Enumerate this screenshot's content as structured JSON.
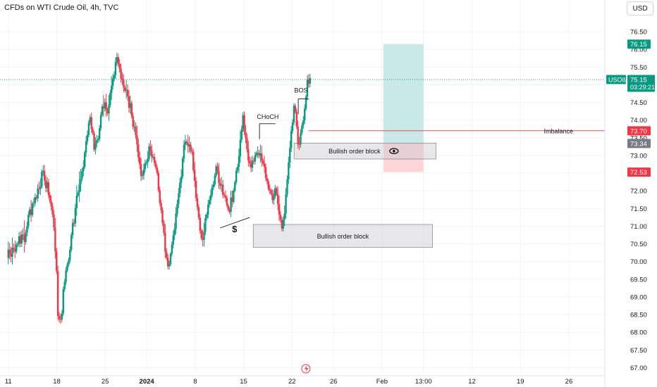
{
  "header": {
    "title": "CFDs on WTI Crude Oil, 4h, TVC",
    "currency": "USD"
  },
  "colors": {
    "up": "#089981",
    "down": "#f23645",
    "grid": "#f0f3fa",
    "text": "#131722",
    "price_tag": "#089981",
    "imbalance": "#f23645",
    "gray_tag": "#787b86",
    "target_zone": "#b2dfdb",
    "stop_zone": "#fccbcd"
  },
  "chart_data": {
    "type": "candlestick",
    "title": "CFDs on WTI Crude Oil, 4h, TVC",
    "ylim": [
      66.85,
      77.0
    ],
    "y_ticks": [
      67.0,
      67.5,
      68.0,
      68.5,
      69.0,
      69.5,
      70.0,
      70.5,
      71.0,
      71.5,
      72.0,
      72.5,
      73.0,
      73.5,
      74.0,
      74.5,
      75.0,
      75.5,
      76.0,
      76.5
    ],
    "y_tick_labels": [
      "67.00",
      "67.50",
      "68.00",
      "68.50",
      "69.00",
      "69.50",
      "70.00",
      "70.50",
      "71.00",
      "71.50",
      "72.00",
      "72.50",
      "73.00",
      "73.50",
      "74.00",
      "74.50",
      "75.00",
      "75.50",
      "76.00",
      "76.50"
    ],
    "x_ticks": [
      "11",
      "18",
      "25",
      "2024",
      "8",
      "15",
      "22",
      "26",
      "Feb",
      "13:00",
      "12",
      "19",
      "26"
    ],
    "x_tick_days": [
      0,
      7,
      14,
      20,
      27,
      34,
      41,
      47,
      54,
      60,
      67,
      74,
      81
    ],
    "xlim_days": [
      -1.2,
      86.2
    ],
    "grid": true,
    "candles": [
      [
        2,
        1.5
      ],
      [
        0.5,
        1.1
      ],
      [
        -0.5,
        1.3
      ],
      [
        1.2,
        -2.0
      ],
      [
        0.4,
        0.6
      ],
      [
        -0.5,
        1.7
      ],
      [
        0.7,
        -0.2
      ],
      [
        0.5,
        0.2
      ],
      [
        1.9,
        -0.5
      ],
      [
        -0.2,
        0.7
      ],
      [
        1.5,
        0.6
      ],
      [
        0.6,
        1.1
      ],
      [
        -2.0,
        -3.0
      ],
      [
        -0.8,
        -0.3
      ],
      [
        -0.2,
        0.6
      ],
      [
        1.5,
        -0.4
      ],
      [
        1.8,
        0.2
      ],
      [
        -0.5,
        1.8
      ],
      [
        1.2,
        0.1
      ],
      [
        0.4,
        -0.8
      ],
      [
        0.8,
        0.5
      ],
      [
        -0.5,
        -0.1
      ],
      [
        0.7,
        0.6
      ],
      [
        -0.5,
        1.2
      ],
      [
        -1.1,
        1.5
      ],
      [
        1.3,
        0.1
      ],
      [
        0.8,
        0.9
      ],
      [
        -0.2,
        1.0
      ],
      [
        -0.7,
        0.8
      ],
      [
        2.0,
        -0.8
      ],
      [
        0.3,
        -0.4
      ],
      [
        0.2,
        -0.3
      ],
      [
        0.2,
        0.8
      ],
      [
        -0.4,
        0.4
      ],
      [
        -0.4,
        0.6
      ],
      [
        -0.8,
        1.8
      ],
      [
        1.3,
        0.4
      ],
      [
        -0.1,
        -0.9
      ],
      [
        0.9,
        -0.5
      ],
      [
        1.3,
        0.9
      ],
      [
        -0.4,
        -0.4
      ],
      [
        1.3,
        -0.2
      ],
      [
        0.3,
        0.3
      ],
      [
        0.9,
        0.4
      ],
      [
        0.1,
        -0.1
      ],
      [
        -1.0,
        -0.2
      ],
      [
        -0.7,
        0.4
      ],
      [
        0.6,
        0.2
      ],
      [
        1.4,
        -0.6
      ],
      [
        -0.7,
        0.5
      ],
      [
        0.9,
        0.6
      ],
      [
        1.9,
        -2.0
      ],
      [
        0.6,
        -0.1
      ],
      [
        0.6,
        -2.6
      ],
      [
        -0.1,
        1.9
      ],
      [
        -0.3,
        0.3
      ],
      [
        -1.3,
        -1.2
      ],
      [
        0.1,
        -0.1
      ],
      [
        0.8,
        -0.8
      ],
      [
        0.3,
        0.6
      ],
      [
        1.2,
        0.2
      ],
      [
        0.9,
        -0.2
      ],
      [
        0.2,
        -0.7
      ],
      [
        1.3,
        -0.1
      ],
      [
        -0.5,
        -0.1
      ],
      [
        1.2,
        -1.0
      ],
      [
        0.2,
        -0.8
      ],
      [
        -1.3,
        0.3
      ],
      [
        -0.5,
        0.3
      ],
      [
        0.9,
        -0.3
      ],
      [
        1.2,
        0.1
      ],
      [
        -1.0,
        -2.2
      ],
      [
        0.4,
        0.5
      ],
      [
        -1.0,
        1.6
      ],
      [
        -1.3,
        -0.2
      ],
      [
        0.6,
        -1.9
      ],
      [
        0.5,
        0.3
      ],
      [
        -0.7,
        1.8
      ],
      [
        -1.0,
        0.7
      ],
      [
        -1.6,
        -0.5
      ],
      [
        0.1,
        0.7
      ],
      [
        -0.1,
        0.6
      ],
      [
        0.5,
        0.4
      ],
      [
        1.6,
        0.7
      ],
      [
        0.9,
        0.8
      ],
      [
        1.1,
        -1.0
      ],
      [
        0.0,
        1.0
      ],
      [
        -0.2,
        0.1
      ],
      [
        0.8,
        1.9
      ],
      [
        0.5,
        -0.9
      ],
      [
        -1.0,
        1.0
      ],
      [
        1.3,
        1.4
      ],
      [
        -0.4,
        0.2
      ],
      [
        -1.1,
        0.4
      ],
      [
        0.8,
        -1.1
      ],
      [
        0.7,
        0.6
      ],
      [
        0.7,
        1.9
      ],
      [
        -0.2,
        1.0
      ],
      [
        0.3,
        1.0
      ],
      [
        -0.3,
        1.1
      ],
      [
        0.6,
        0.6
      ],
      [
        0.5,
        0.9
      ],
      [
        0.4,
        0.5
      ],
      [
        -0.8,
        0.1
      ],
      [
        -1.4,
        -1.3
      ],
      [
        0.0,
        -0.3
      ],
      [
        -1.9,
        1.0
      ],
      [
        -1.8,
        1.1
      ],
      [
        -0.1,
        -0.2
      ],
      [
        0.1,
        0.5
      ],
      [
        0.6,
        0.2
      ],
      [
        1.0,
        -0.2
      ],
      [
        -0.2,
        0.2
      ],
      [
        -0.4,
        0.4
      ],
      [
        0.7,
        0.4
      ],
      [
        0.5,
        0.3
      ],
      [
        1.0,
        -0.3
      ],
      [
        -0.7,
        1.6
      ],
      [
        0.7,
        0.4
      ],
      [
        0.1,
        0.4
      ],
      [
        -0.8,
        0.5
      ],
      [
        0.3,
        0.0
      ],
      [
        1.1,
        -0.3
      ],
      [
        1.1,
        0.7
      ],
      [
        0.1,
        1.0
      ],
      [
        1.2,
        1.1
      ],
      [
        1.0,
        -0.6
      ],
      [
        0.9,
        0.9
      ],
      [
        0.6,
        0.7
      ],
      [
        -0.9,
        1.3
      ],
      [
        0.5,
        -0.1
      ],
      [
        0.9,
        -0.7
      ],
      [
        0.2,
        -1.2
      ],
      [
        0.5,
        -0.1
      ],
      [
        0.4,
        1.6
      ],
      [
        1.4,
        1.5
      ],
      [
        0.6,
        -0.3
      ],
      [
        1.6,
        0.4
      ],
      [
        0.3,
        0.3
      ],
      [
        0.8,
        1.5
      ],
      [
        -0.2,
        -0.5
      ],
      [
        0.6,
        0.6
      ],
      [
        0.2,
        0.2
      ],
      [
        -0.8,
        -0.4
      ],
      [
        -0.5,
        -0.1
      ],
      [
        -0.7,
        1.6
      ],
      [
        -0.4,
        1.7
      ],
      [
        1.2,
        -0.5
      ],
      [
        0.4,
        0.2
      ],
      [
        1.2,
        -0.7
      ],
      [
        0.6,
        0.5
      ],
      [
        0.2,
        0.9
      ],
      [
        0.4,
        0.3
      ],
      [
        -0.6,
        0.4
      ],
      [
        -0.1,
        0.2
      ],
      [
        1.0,
        0.1
      ],
      [
        1.0,
        -0.5
      ],
      [
        -0.7,
        1.4
      ],
      [
        -0.2,
        0.7
      ],
      [
        1.2,
        1.4
      ],
      [
        0.0,
        0.7
      ],
      [
        0.8,
        0.1
      ],
      [
        1.4,
        0.8
      ],
      [
        0.7,
        -0.1
      ],
      [
        0.7,
        0.0
      ],
      [
        0.2,
        -0.2
      ],
      [
        1.8,
        1.2
      ],
      [
        -1.0,
        1.2
      ],
      [
        -0.1,
        -0.1
      ],
      [
        0.1,
        0.0
      ],
      [
        0.9,
        -0.2
      ],
      [
        -0.8,
        -0.3
      ],
      [
        -0.9,
        1.4
      ],
      [
        0.4,
        1.6
      ],
      [
        0.3,
        0.4
      ],
      [
        1.3,
        0.3
      ],
      [
        -0.2,
        -0.5
      ],
      [
        0.8,
        1.2
      ],
      [
        0.6,
        0.6
      ],
      [
        -0.5,
        1.5
      ],
      [
        0.5,
        0.6
      ],
      [
        0.1,
        1.0
      ],
      [
        0.7,
        0.8
      ],
      [
        -0.5,
        -0.3
      ],
      [
        -0.1,
        0.4
      ],
      [
        -0.1,
        0.0
      ],
      [
        0.4,
        1.1
      ],
      [
        0.2,
        -0.3
      ],
      [
        1.2,
        1.7
      ],
      [
        0.0,
        1.4
      ],
      [
        -0.1,
        0.1
      ],
      [
        0.7,
        1.4
      ],
      [
        -0.3,
        0.4
      ],
      [
        0.6,
        -0.5
      ],
      [
        0.0,
        -0.1
      ],
      [
        0.5,
        0.7
      ],
      [
        0.5,
        0.0
      ],
      [
        -0.9,
        0.6
      ],
      [
        -0.9,
        -1.0
      ],
      [
        0.0,
        0.3
      ],
      [
        0.1,
        0.0
      ],
      [
        -0.1,
        1.5
      ],
      [
        -0.4,
        -1.6
      ],
      [
        -0.4,
        0.4
      ],
      [
        -1.7,
        0.3
      ],
      [
        1.2,
        0.4
      ],
      [
        0.4,
        1.5
      ],
      [
        0.8,
        1.0
      ],
      [
        0.1,
        0.5
      ],
      [
        0.7,
        -0.9
      ],
      [
        0.7,
        1.3
      ],
      [
        1.4,
        0.7
      ],
      [
        -0.1,
        -0.4
      ],
      [
        0.5,
        0.2
      ],
      [
        1.3,
        0.1
      ],
      [
        0.8,
        -0.3
      ],
      [
        -0.4,
        -0.9
      ],
      [
        1.2,
        1.3
      ],
      [
        1.7,
        -0.5
      ],
      [
        1.3,
        0.2
      ],
      [
        0.2,
        0.6
      ],
      [
        0.6,
        -0.6
      ],
      [
        0.2,
        -0.1
      ],
      [
        1.2,
        0.6
      ],
      [
        -0.6,
        0.8
      ],
      [
        -0.1,
        0.6
      ]
    ],
    "price_path": [
      [
        0,
        70.1
      ],
      [
        2,
        70.6
      ],
      [
        4,
        71.8
      ],
      [
        5,
        72.5
      ],
      [
        6.5,
        71.3
      ],
      [
        6.9,
        70.0
      ],
      [
        7.2,
        68.3
      ],
      [
        7.6,
        68.2
      ],
      [
        8,
        69.2
      ],
      [
        9.2,
        70.8
      ],
      [
        10.5,
        72.4
      ],
      [
        11.8,
        74.0
      ],
      [
        12.5,
        73.1
      ],
      [
        13.8,
        74.5
      ],
      [
        14.5,
        74.3
      ],
      [
        15,
        75.2
      ],
      [
        15.7,
        75.8
      ],
      [
        16.2,
        75.1
      ],
      [
        17,
        74.8
      ],
      [
        17.8,
        74.2
      ],
      [
        18.4,
        73.5
      ],
      [
        19.3,
        72.3
      ],
      [
        20.5,
        73.4
      ],
      [
        21.5,
        72.4
      ],
      [
        22.3,
        71.0
      ],
      [
        23.0,
        69.8
      ],
      [
        23.7,
        70.4
      ],
      [
        24.6,
        71.8
      ],
      [
        25.5,
        73.4
      ],
      [
        26.5,
        73.0
      ],
      [
        27.3,
        71.5
      ],
      [
        28,
        70.6
      ],
      [
        29,
        71.6
      ],
      [
        30,
        72.6
      ],
      [
        31,
        71.9
      ],
      [
        31.9,
        71.3
      ],
      [
        32.9,
        72.4
      ],
      [
        33.9,
        74.0
      ],
      [
        34.5,
        73.1
      ],
      [
        35.0,
        72.6
      ],
      [
        35.8,
        73.1
      ],
      [
        36.8,
        72.8
      ],
      [
        37.5,
        72.1
      ],
      [
        38.1,
        71.8
      ],
      [
        38.6,
        72.1
      ],
      [
        39.2,
        71.3
      ],
      [
        39.8,
        71.0
      ],
      [
        40.3,
        72.3
      ],
      [
        41.3,
        74.4
      ],
      [
        42,
        73.1
      ],
      [
        42.8,
        74.2
      ],
      [
        43.2,
        75.0
      ],
      [
        43.6,
        75.2
      ]
    ],
    "last_price": 75.15,
    "last_price_label": "75.15",
    "countdown": "03:29:21",
    "symbol_tag": "USOIL",
    "price_tags": [
      {
        "value": 76.15,
        "label": "76.15",
        "kind": "target"
      },
      {
        "value": 73.7,
        "label": "73.70",
        "kind": "imbalance"
      },
      {
        "value": 73.34,
        "label": "73.34",
        "kind": "gray"
      },
      {
        "value": 72.53,
        "label": "72.53",
        "kind": "stop"
      }
    ],
    "zones": [
      {
        "label": "Bullish order block",
        "x_days": [
          35.4,
          61.3
        ],
        "y_range": [
          70.4,
          71.05
        ],
        "show_eye_icon": false
      },
      {
        "label": "Bullish order block",
        "x_days": [
          41.3,
          61.8
        ],
        "y_range": [
          72.9,
          73.35
        ],
        "show_eye_icon": true
      }
    ],
    "position": {
      "x_days": [
        54.2,
        60.0
      ],
      "entry": 73.34,
      "target": 76.15,
      "stop": 72.53
    },
    "annotations": [
      {
        "text": "BOS",
        "x_day": 42.3,
        "price": 74.85,
        "line": [
          [
            41.9,
            74.6
          ],
          [
            43.4,
            74.6
          ]
        ]
      },
      {
        "text": "CHoCH",
        "x_day": 37.5,
        "price": 74.1,
        "line": [
          [
            36.3,
            73.9
          ],
          [
            38.6,
            73.9
          ]
        ]
      },
      {
        "text": "Imbalance",
        "x_day": 79.5,
        "price": 73.7
      },
      {
        "text": "$",
        "x_day": 32.7,
        "price": 70.9
      }
    ],
    "imbalance_line": {
      "x_start_day": 43.4,
      "price": 73.7
    },
    "liquidity_line": [
      [
        30.6,
        70.95
      ],
      [
        34.9,
        71.25
      ]
    ],
    "time_icon_day": 43.0
  }
}
